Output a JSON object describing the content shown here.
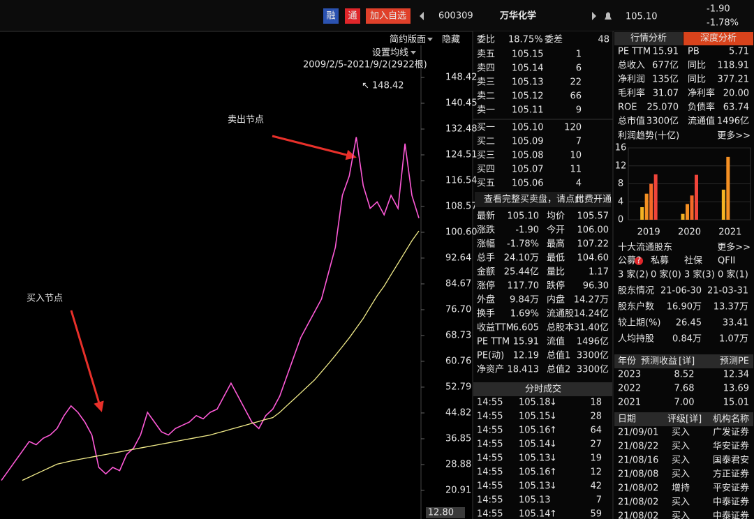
{
  "header": {
    "badges": [
      "融",
      "通",
      "加入自选"
    ],
    "code": "600309",
    "name": "万华化学",
    "price": "105.10",
    "change": "-1.90",
    "change_pct": "-1.78%"
  },
  "toolbar": {
    "layout": "简约版面",
    "hide": "隐藏",
    "ma_setting": "设置均线",
    "range": "2009/2/5-2021/9/2(2922根)"
  },
  "chart_data": [
    {
      "type": "line",
      "annotations": [
        "卖出节点",
        "买入节点"
      ],
      "peak": 148.42,
      "cursor": 12.8,
      "ylim": [
        12.07,
        158.33
      ],
      "yticks": [
        148.42,
        140.45,
        132.48,
        124.51,
        116.54,
        108.57,
        {
          "value": 100.6,
          "label": "100.60"
        },
        92.64,
        84.67,
        {
          "value": 76.7,
          "label": "76.70"
        },
        68.73,
        60.76,
        52.79,
        44.82,
        36.85,
        28.88,
        20.91
      ],
      "series": [
        {
          "color": "#ff5ad8",
          "values": [
            24,
            27,
            30,
            33,
            36,
            35,
            37,
            38,
            40,
            44,
            47,
            45,
            42,
            38,
            28,
            26,
            28,
            27,
            32,
            34,
            38,
            45,
            42,
            39,
            38,
            40,
            41,
            42,
            44,
            43,
            45,
            46,
            50,
            54,
            50,
            46,
            42,
            40,
            44,
            46,
            50,
            56,
            62,
            68,
            72,
            76,
            80,
            88,
            96,
            112,
            118,
            130,
            115,
            108,
            110,
            106,
            112,
            108,
            128,
            112,
            105
          ]
        },
        {
          "color": "#f2ec8a",
          "values": [
            null,
            null,
            null,
            24,
            25,
            26,
            27,
            28,
            29,
            29.5,
            30,
            30.4,
            30.8,
            31.2,
            31.6,
            32,
            32.4,
            32.8,
            33.2,
            33.6,
            34,
            34.4,
            34.8,
            35.2,
            35.6,
            36,
            36.4,
            36.8,
            37.2,
            37.6,
            38,
            38.6,
            39.2,
            39.8,
            40.4,
            41,
            41.6,
            42.2,
            42.8,
            43.4,
            45,
            47,
            49,
            51,
            53,
            55,
            57.5,
            60,
            62.6,
            65.3,
            68,
            71,
            74,
            77.5,
            81,
            84,
            87.5,
            91,
            94.5,
            98,
            101
          ]
        }
      ]
    },
    {
      "type": "bar",
      "title": "利润趋势(十亿)",
      "categories": [
        "2019",
        "2020",
        "2021"
      ],
      "ylim": [
        0,
        16
      ],
      "yticks": [
        0,
        4,
        8,
        12,
        16
      ],
      "series": [
        {
          "color": "#f5b323",
          "values": [
            2.8,
            1.3,
            6.7
          ]
        },
        {
          "color": "#f59023",
          "values": [
            5.8,
            3.5,
            14
          ]
        },
        {
          "color": "#f56a28",
          "values": [
            8,
            5.4,
            null
          ]
        },
        {
          "color": "#f0443a",
          "values": [
            10.1,
            10,
            null
          ]
        }
      ]
    }
  ],
  "orderbook": {
    "ratio_label": "委比",
    "ratio": "18.75%",
    "diff_label": "委差",
    "diff": "48",
    "asks": [
      [
        "卖五",
        "105.15",
        "1"
      ],
      [
        "卖四",
        "105.14",
        "6"
      ],
      [
        "卖三",
        "105.13",
        "22"
      ],
      [
        "卖二",
        "105.12",
        "66"
      ],
      [
        "卖一",
        "105.11",
        "9"
      ]
    ],
    "bids": [
      [
        "买一",
        "105.10",
        "120"
      ],
      [
        "买二",
        "105.09",
        "7"
      ],
      [
        "买三",
        "105.08",
        "10"
      ],
      [
        "买四",
        "105.07",
        "11"
      ],
      [
        "买五",
        "105.06",
        "4"
      ]
    ],
    "notice": "查看完整买卖盘，请点此",
    "notice_link": "付费开通"
  },
  "quote": [
    [
      "最新",
      "105.10",
      "均价",
      "105.57"
    ],
    [
      "涨跌",
      "-1.90",
      "今开",
      "106.00"
    ],
    [
      "涨幅",
      "-1.78%",
      "最高",
      "107.22"
    ],
    [
      "总手",
      "24.10万",
      "最低",
      "104.60"
    ],
    [
      "金额",
      "25.44亿",
      "量比",
      "1.17"
    ],
    [
      "涨停",
      "117.70",
      "跌停",
      "96.30"
    ],
    [
      "外盘",
      "9.84万",
      "内盘",
      "14.27万"
    ],
    [
      "换手",
      "1.69%",
      "流通股",
      "14.24亿"
    ],
    [
      "收益TTM",
      "6.605",
      "总股本",
      "31.40亿"
    ],
    [
      "PE TTM",
      "15.91",
      "流值",
      "1496亿"
    ],
    [
      "PE(动)",
      "12.19",
      "总值1",
      "3300亿"
    ],
    [
      "净资产",
      "18.413",
      "总值2",
      "3300亿"
    ]
  ],
  "trades": {
    "title": "分时成交",
    "rows": [
      {
        "time": "14:55",
        "price": "105.18",
        "dir": "↓",
        "vol": "18"
      },
      {
        "time": "14:55",
        "price": "105.15",
        "dir": "↓",
        "vol": "28"
      },
      {
        "time": "14:55",
        "price": "105.16",
        "dir": "↑",
        "vol": "64"
      },
      {
        "time": "14:55",
        "price": "105.14",
        "dir": "↓",
        "vol": "27"
      },
      {
        "time": "14:55",
        "price": "105.13",
        "dir": "↓",
        "vol": "19"
      },
      {
        "time": "14:55",
        "price": "105.16",
        "dir": "↑",
        "vol": "12"
      },
      {
        "time": "14:55",
        "price": "105.13",
        "dir": "↓",
        "vol": "42"
      },
      {
        "time": "14:55",
        "price": "105.13",
        "vol": "7"
      },
      {
        "time": "14:55",
        "price": "105.14",
        "dir": "↑",
        "vol": "59"
      }
    ]
  },
  "analysis": {
    "tabs": [
      "行情分析",
      "深度分析"
    ],
    "fund": [
      [
        "PE TTM",
        "15.91",
        "PB",
        "5.71"
      ],
      [
        "总收入",
        "677亿",
        "同比",
        "118.91"
      ],
      [
        "净利润",
        "135亿",
        "同比",
        "377.21"
      ],
      [
        "毛利率",
        "31.07",
        "净利率",
        "20.00"
      ],
      [
        "ROE",
        "25.070",
        "负债率",
        "63.74"
      ],
      [
        "总市值",
        "3300亿",
        "流通值",
        "1496亿"
      ]
    ],
    "more": "更多>>"
  },
  "holders": {
    "title": "十大流通股东",
    "more": "更多>>",
    "types": [
      "公募",
      "私募",
      "社保",
      "QFII"
    ],
    "hint": "?",
    "counts": [
      "3 家(2)",
      "0 家(0)",
      "3 家(3)",
      "0 家(1)"
    ],
    "rows": [
      [
        "股东情况",
        "21-06-30",
        "21-03-31"
      ],
      [
        "股东户数",
        "16.90万",
        "13.37万"
      ],
      [
        "较上期(%)",
        "26.45",
        "33.41"
      ],
      [
        "人均持股",
        "0.84万",
        "1.07万"
      ]
    ]
  },
  "forecast": {
    "header": [
      "年份",
      "预测收益",
      "[详]",
      "预测PE"
    ],
    "rows": [
      [
        "2023",
        "8.52",
        "12.34"
      ],
      [
        "2022",
        "7.68",
        "13.69"
      ],
      [
        "2021",
        "7.00",
        "15.01"
      ]
    ]
  },
  "ratings": {
    "header": [
      "日期",
      "评级",
      "[详]",
      "机构名称"
    ],
    "rows": [
      [
        "21/09/01",
        "买入",
        "广发证券"
      ],
      [
        "21/08/22",
        "买入",
        "华安证券"
      ],
      [
        "21/08/16",
        "买入",
        "国泰君安"
      ],
      [
        "21/08/08",
        "买入",
        "方正证券"
      ],
      [
        "21/08/02",
        "增持",
        "平安证券"
      ],
      [
        "21/08/02",
        "买入",
        "中泰证券"
      ],
      [
        "21/08/02",
        "买入",
        "中泰证券"
      ]
    ]
  }
}
